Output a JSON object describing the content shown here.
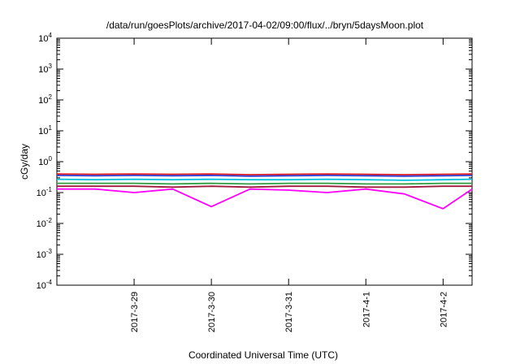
{
  "chart_data": {
    "type": "line",
    "title": "/data/run/goesPlots/archive/2017-04-02/09:00/flux/../bryn/5daysMoon.plot",
    "xlabel": "Coordinated Universal Time (UTC)",
    "ylabel": "cGy/day",
    "yscale": "log",
    "ylim": [
      0.0001,
      10000
    ],
    "y_ticks": [
      {
        "base": "10",
        "exp": "-4",
        "value": 0.0001
      },
      {
        "base": "10",
        "exp": "-3",
        "value": 0.001
      },
      {
        "base": "10",
        "exp": "-2",
        "value": 0.01
      },
      {
        "base": "10",
        "exp": "-1",
        "value": 0.1
      },
      {
        "base": "10",
        "exp": "0",
        "value": 1
      },
      {
        "base": "10",
        "exp": "1",
        "value": 10
      },
      {
        "base": "10",
        "exp": "2",
        "value": 100
      },
      {
        "base": "10",
        "exp": "3",
        "value": 1000
      },
      {
        "base": "10",
        "exp": "4",
        "value": 10000
      }
    ],
    "xlim": [
      "2017-03-28T00:00",
      "2017-04-02T09:00"
    ],
    "x_ticks": [
      "2017-3-29",
      "2017-3-30",
      "2017-3-31",
      "2017-4-1",
      "2017-4-2"
    ],
    "x": [
      "2017-03-28T00:00",
      "2017-03-28T12:00",
      "2017-03-29T00:00",
      "2017-03-29T12:00",
      "2017-03-30T00:00",
      "2017-03-30T12:00",
      "2017-03-31T00:00",
      "2017-03-31T12:00",
      "2017-04-01T00:00",
      "2017-04-01T12:00",
      "2017-04-02T00:00",
      "2017-04-02T09:00"
    ],
    "series": [
      {
        "color": "#e41a1c",
        "values": [
          0.4,
          0.39,
          0.4,
          0.39,
          0.4,
          0.38,
          0.39,
          0.4,
          0.39,
          0.38,
          0.39,
          0.4
        ]
      },
      {
        "color": "#2f3fd6",
        "values": [
          0.36,
          0.35,
          0.36,
          0.35,
          0.36,
          0.34,
          0.35,
          0.36,
          0.35,
          0.34,
          0.35,
          0.36
        ]
      },
      {
        "color": "#00c0e0",
        "values": [
          0.27,
          0.26,
          0.27,
          0.26,
          0.27,
          0.26,
          0.26,
          0.27,
          0.26,
          0.25,
          0.26,
          0.27
        ]
      },
      {
        "color": "#2e9e3e",
        "values": [
          0.2,
          0.2,
          0.2,
          0.19,
          0.2,
          0.19,
          0.2,
          0.2,
          0.19,
          0.19,
          0.2,
          0.2
        ]
      },
      {
        "color": "#a01a3a",
        "values": [
          0.16,
          0.16,
          0.16,
          0.15,
          0.16,
          0.15,
          0.16,
          0.16,
          0.15,
          0.15,
          0.16,
          0.16
        ]
      },
      {
        "color": "#ff00ff",
        "values": [
          0.13,
          0.13,
          0.1,
          0.13,
          0.035,
          0.13,
          0.12,
          0.1,
          0.13,
          0.09,
          0.03,
          0.13
        ]
      }
    ],
    "grid": false,
    "legend": "none"
  }
}
